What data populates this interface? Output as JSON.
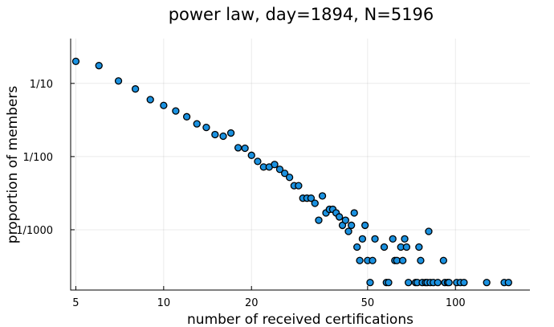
{
  "chart_data": {
    "type": "scatter",
    "title": "power law, day=1894, N=5196",
    "xlabel": "number of received certifications",
    "ylabel": "proportion of members",
    "xscale": "log",
    "yscale": "log",
    "xlim": [
      4.8,
      180
    ],
    "ylim": [
      0.00015,
      0.41
    ],
    "xticks": [
      {
        "value": 5,
        "label": "5"
      },
      {
        "value": 10,
        "label": "10"
      },
      {
        "value": 20,
        "label": "20"
      },
      {
        "value": 50,
        "label": "50"
      },
      {
        "value": 100,
        "label": "100"
      }
    ],
    "yticks": [
      {
        "value": 0.1,
        "label": "1/10"
      },
      {
        "value": 0.01,
        "label": "1/100"
      },
      {
        "value": 0.001,
        "label": "1/1000"
      }
    ],
    "grid": true,
    "legend": "none",
    "marker_color": "#1a91e0",
    "series": [
      {
        "points": [
          [
            5,
            0.2
          ],
          [
            6,
            0.175
          ],
          [
            7,
            0.108
          ],
          [
            8,
            0.084
          ],
          [
            9,
            0.06
          ],
          [
            10,
            0.05
          ],
          [
            11,
            0.042
          ],
          [
            12,
            0.035
          ],
          [
            13,
            0.028
          ],
          [
            14,
            0.025
          ],
          [
            15,
            0.02
          ],
          [
            16,
            0.019
          ],
          [
            17,
            0.021
          ],
          [
            18,
            0.0132
          ],
          [
            19,
            0.013
          ],
          [
            20,
            0.0104
          ],
          [
            21,
            0.0086
          ],
          [
            22,
            0.0072
          ],
          [
            23,
            0.0072
          ],
          [
            24,
            0.0078
          ],
          [
            25,
            0.0067
          ],
          [
            26,
            0.0059
          ],
          [
            27,
            0.0052
          ],
          [
            28,
            0.004
          ],
          [
            29,
            0.004
          ],
          [
            30,
            0.0027
          ],
          [
            31,
            0.0027
          ],
          [
            32,
            0.0027
          ],
          [
            33,
            0.0023
          ],
          [
            34,
            0.00135
          ],
          [
            35,
            0.0029
          ],
          [
            36,
            0.0017
          ],
          [
            37,
            0.0019
          ],
          [
            38,
            0.0019
          ],
          [
            39,
            0.0017
          ],
          [
            40,
            0.0015
          ],
          [
            41,
            0.00115
          ],
          [
            42,
            0.00135
          ],
          [
            43,
            0.00095
          ],
          [
            44,
            0.00115
          ],
          [
            45,
            0.0017
          ],
          [
            46,
            0.00058
          ],
          [
            47,
            0.00038
          ],
          [
            48,
            0.00075
          ],
          [
            49,
            0.00115
          ],
          [
            50,
            0.00038
          ],
          [
            51,
            0.00019
          ],
          [
            52,
            0.00038
          ],
          [
            53,
            0.00075
          ],
          [
            57,
            0.00058
          ],
          [
            58,
            0.00019
          ],
          [
            59,
            0.00019
          ],
          [
            61,
            0.00075
          ],
          [
            62,
            0.00038
          ],
          [
            63,
            0.00038
          ],
          [
            65,
            0.00058
          ],
          [
            66,
            0.00038
          ],
          [
            67,
            0.00075
          ],
          [
            68,
            0.00058
          ],
          [
            69,
            0.00019
          ],
          [
            73,
            0.00019
          ],
          [
            74,
            0.00019
          ],
          [
            75,
            0.00058
          ],
          [
            76,
            0.00038
          ],
          [
            77,
            0.00019
          ],
          [
            79,
            0.00019
          ],
          [
            80,
            0.00019
          ],
          [
            81,
            0.00095
          ],
          [
            82,
            0.00019
          ],
          [
            84,
            0.00019
          ],
          [
            87,
            0.00019
          ],
          [
            91,
            0.00038
          ],
          [
            92,
            0.00019
          ],
          [
            94,
            0.00019
          ],
          [
            95,
            0.00019
          ],
          [
            101,
            0.00019
          ],
          [
            104,
            0.00019
          ],
          [
            107,
            0.00019
          ],
          [
            128,
            0.00019
          ],
          [
            147,
            0.00019
          ],
          [
            152,
            0.00019
          ]
        ]
      }
    ]
  }
}
